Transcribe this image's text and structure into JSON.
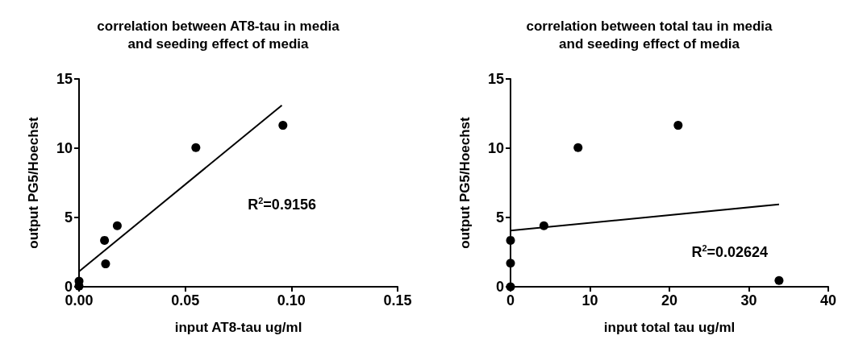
{
  "chart_data": [
    {
      "type": "scatter",
      "title": "correlation between AT8-tau in media\nand seeding effect of media",
      "xlabel": "input AT8-tau ug/ml",
      "ylabel": "output PG5/Hoechst",
      "annotations": [
        "R$^{2}$=0.9156"
      ],
      "grid": false,
      "xlim": [
        0,
        0.15
      ],
      "xticks": [
        {
          "value": 0,
          "label": "0.00"
        },
        {
          "value": 0.05,
          "label": "0.05"
        },
        {
          "value": 0.1,
          "label": "0.10"
        },
        {
          "value": 0.15,
          "label": "0.15"
        }
      ],
      "ylim": [
        0,
        15
      ],
      "yticks": [
        0,
        5,
        10,
        15
      ],
      "series": [
        {
          "color": "#000000",
          "marker": "circle",
          "x": [
            0,
            0,
            0.012,
            0.0125,
            0.018,
            0.055,
            0.096
          ],
          "values": [
            0.05,
            0.4,
            3.35,
            1.65,
            4.4,
            10.05,
            11.65
          ]
        },
        {
          "type": "line",
          "color": "#000000",
          "marker": "none",
          "x": [
            0,
            0.0955
          ],
          "values": [
            1.1,
            13.1
          ]
        }
      ]
    },
    {
      "type": "scatter",
      "title": "correlation between total tau in media\nand seeding effect of media",
      "xlabel": "input total tau ug/ml",
      "ylabel": "output PG5/Hoechst",
      "annotations": [
        "R$^{2}$=0.02624"
      ],
      "grid": false,
      "xlim": [
        0,
        40
      ],
      "xticks": [
        0,
        10,
        20,
        30,
        40
      ],
      "ylim": [
        0,
        15
      ],
      "yticks": [
        0,
        5,
        10,
        15
      ],
      "series": [
        {
          "color": "#000000",
          "marker": "circle",
          "x": [
            0,
            0,
            0,
            4.2,
            8.5,
            21.1,
            33.8
          ],
          "values": [
            0,
            1.7,
            3.35,
            4.4,
            10.05,
            11.65,
            0.45
          ]
        },
        {
          "type": "line",
          "color": "#000000",
          "marker": "none",
          "x": [
            0,
            33.8
          ],
          "values": [
            4.05,
            5.95
          ]
        }
      ]
    }
  ]
}
